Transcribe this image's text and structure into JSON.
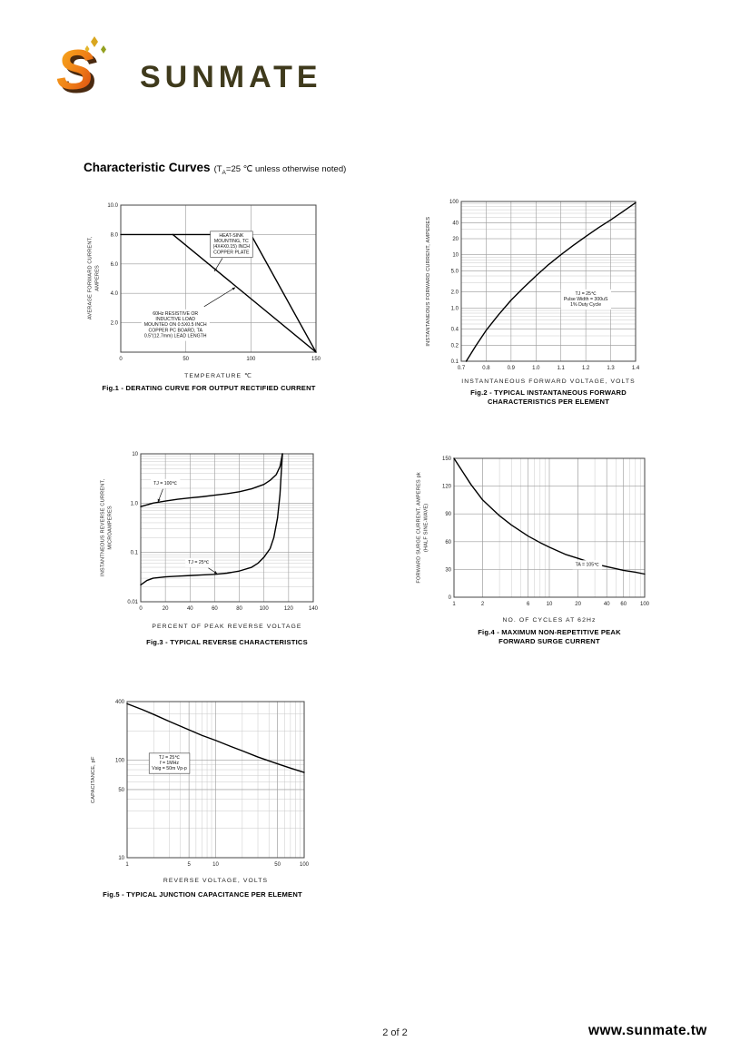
{
  "page": {
    "brand": "SUNMATE",
    "logo_monogram": "S",
    "title": "Characteristic Curves",
    "title_note_pre": "(T",
    "title_note_sub": "A",
    "title_note_post": "=25 ℃ unless otherwise noted)",
    "footer_page": "2 of 2",
    "footer_site": "www.sunmate.tw"
  },
  "colors": {
    "logo_gradient_top": "#f9b51e",
    "logo_gradient_bottom": "#d43f10",
    "wordmark": "#3f3a1c",
    "grid_minor": "#c9c9c9",
    "grid_major": "#9b9b9b",
    "curve": "#000000"
  },
  "chart_data": [
    {
      "id": "fig1",
      "type": "line",
      "x_label": "TEMPERATURE ℃",
      "y_label": "AVERAGE FORWARD CURRENT,\nAMPERES",
      "caption": "Fig.1 - DERATING CURVE FOR OUTPUT RECTIFIED CURRENT",
      "x_axis": {
        "scale": "linear",
        "min": 0,
        "max": 150,
        "ticks": [
          0,
          50,
          100,
          150
        ],
        "tick_labels": [
          "0",
          "50",
          "100",
          "150"
        ]
      },
      "y_axis": {
        "scale": "linear",
        "min": 0,
        "max": 10,
        "ticks": [
          2,
          4,
          6,
          8,
          10
        ],
        "tick_labels": [
          "2.0",
          "4.0",
          "6.0",
          "8.0",
          "10.0"
        ]
      },
      "series": [
        {
          "name": "heat-sink mounted",
          "points": [
            [
              0,
              8
            ],
            [
              100,
              8
            ],
            [
              150,
              0
            ]
          ]
        },
        {
          "name": "pc-board mounted",
          "points": [
            [
              40,
              8
            ],
            [
              150,
              0
            ]
          ]
        }
      ],
      "annotations": [
        {
          "text": "HEAT-SINK\nMOUNTING, TC\n(4X4X0.15) INCH\nCOPPER PLATE",
          "x": 85,
          "y": 7.4,
          "boxed": true,
          "arrow_to": [
            72,
            5.5
          ]
        },
        {
          "text": "60Hz RESISTIVE OR\nINDUCTIVE LOAD\nMOUNTED ON 0.5X0.5 INCH\nCOPPER PC BOARD, TA\n0.5\"(12.7mm) LEAD LENGTH",
          "x": 42,
          "y": 1.9,
          "boxed": false,
          "arrow_to": [
            88,
            4.4
          ]
        }
      ]
    },
    {
      "id": "fig2",
      "type": "line",
      "x_label": "INSTANTANEOUS FORWARD VOLTAGE, VOLTS",
      "y_label": "INSTANTANEOUS FORWARD CURRENT, AMPERES",
      "caption": "Fig.2 - TYPICAL INSTANTANEOUS FORWARD\nCHARACTERISTICS PER ELEMENT",
      "x_axis": {
        "scale": "linear",
        "min": 0.7,
        "max": 1.4,
        "ticks": [
          0.7,
          0.8,
          0.9,
          1.0,
          1.1,
          1.2,
          1.3,
          1.4
        ],
        "tick_labels": [
          "0.7",
          "0.8",
          "0.9",
          "1.0",
          "1.1",
          "1.2",
          "1.3",
          "1.4"
        ]
      },
      "y_axis": {
        "scale": "log",
        "min": 0.1,
        "max": 100,
        "ticks": [
          0.1,
          0.2,
          0.4,
          1.0,
          2.0,
          5.0,
          10,
          20,
          40,
          100
        ],
        "tick_labels": [
          "0.1",
          "0.2",
          "0.4",
          "1.0",
          "2.0",
          "5.0",
          "10",
          "20",
          "40",
          "100"
        ]
      },
      "series": [
        {
          "name": "forward characteristic",
          "points": [
            [
              0.72,
              0.1
            ],
            [
              0.76,
              0.2
            ],
            [
              0.8,
              0.38
            ],
            [
              0.85,
              0.75
            ],
            [
              0.9,
              1.4
            ],
            [
              0.95,
              2.4
            ],
            [
              1.0,
              4
            ],
            [
              1.05,
              6.5
            ],
            [
              1.1,
              10
            ],
            [
              1.15,
              15
            ],
            [
              1.2,
              22
            ],
            [
              1.25,
              32
            ],
            [
              1.3,
              45
            ],
            [
              1.35,
              65
            ],
            [
              1.4,
              95
            ]
          ]
        }
      ],
      "annotations": [
        {
          "text": "TJ = 25℃\nPulse Width = 300uS\n1% Duty Cycle",
          "x": 1.2,
          "y": 1.5,
          "boxed": false
        }
      ]
    },
    {
      "id": "fig3",
      "type": "line",
      "x_label": "PERCENT OF PEAK REVERSE VOLTAGE",
      "y_label": "INSTANTNEOUS REVERSE CURRENT,\nMICROAMPERES",
      "caption": "Fig.3 - TYPICAL REVERSE CHARACTERISTICS",
      "x_axis": {
        "scale": "linear",
        "min": 0,
        "max": 140,
        "ticks": [
          0,
          20,
          40,
          60,
          80,
          100,
          120,
          140
        ],
        "tick_labels": [
          "0",
          "20",
          "40",
          "60",
          "80",
          "100",
          "120",
          "140"
        ]
      },
      "y_axis": {
        "scale": "log",
        "min": 0.01,
        "max": 10,
        "ticks": [
          0.01,
          0.1,
          1.0,
          10
        ],
        "tick_labels": [
          "0.01",
          "0.1",
          "1.0",
          "10"
        ]
      },
      "series": [
        {
          "name": "TJ = 100C",
          "points": [
            [
              0,
              0.85
            ],
            [
              10,
              1.0
            ],
            [
              20,
              1.1
            ],
            [
              30,
              1.2
            ],
            [
              40,
              1.28
            ],
            [
              50,
              1.35
            ],
            [
              60,
              1.45
            ],
            [
              70,
              1.55
            ],
            [
              80,
              1.7
            ],
            [
              90,
              1.95
            ],
            [
              100,
              2.4
            ],
            [
              105,
              2.9
            ],
            [
              110,
              3.8
            ],
            [
              113,
              5.5
            ],
            [
              115,
              10
            ]
          ]
        },
        {
          "name": "TJ = 25C",
          "points": [
            [
              0,
              0.022
            ],
            [
              5,
              0.027
            ],
            [
              10,
              0.03
            ],
            [
              20,
              0.032
            ],
            [
              30,
              0.033
            ],
            [
              40,
              0.034
            ],
            [
              50,
              0.035
            ],
            [
              60,
              0.036
            ],
            [
              70,
              0.038
            ],
            [
              80,
              0.042
            ],
            [
              90,
              0.05
            ],
            [
              95,
              0.06
            ],
            [
              100,
              0.08
            ],
            [
              105,
              0.12
            ],
            [
              108,
              0.2
            ],
            [
              111,
              0.5
            ],
            [
              113,
              1.5
            ],
            [
              114,
              4
            ],
            [
              115,
              10
            ]
          ]
        }
      ],
      "annotations": [
        {
          "text": "TJ = 100℃",
          "x": 20,
          "y": 2.6,
          "boxed": false,
          "arrow_to": [
            14,
            1.05
          ]
        },
        {
          "text": "TJ = 25℃",
          "x": 47,
          "y": 0.065,
          "boxed": false,
          "arrow_to": [
            62,
            0.037
          ]
        }
      ]
    },
    {
      "id": "fig4",
      "type": "line",
      "x_label": "NO. OF CYCLES AT 62Hz",
      "y_label": "FORWARD SURGE CURRENT, AMPERES pk\n(HALF SINE-WAVE)",
      "caption": "Fig.4 - MAXIMUM NON-REPETITIVE PEAK\nFORWARD SURGE CURRENT",
      "x_axis": {
        "scale": "log",
        "min": 1,
        "max": 100,
        "ticks": [
          1,
          2,
          6,
          10,
          20,
          40,
          60,
          100
        ],
        "tick_labels": [
          "1",
          "2",
          "6",
          "10",
          "20",
          "40",
          "60",
          "100"
        ]
      },
      "y_axis": {
        "scale": "linear",
        "min": 0,
        "max": 150,
        "ticks": [
          0,
          30,
          60,
          90,
          120,
          150
        ],
        "tick_labels": [
          "0",
          "30",
          "60",
          "90",
          "120",
          "150"
        ]
      },
      "series": [
        {
          "name": "surge current",
          "points": [
            [
              1,
              150
            ],
            [
              1.5,
              122
            ],
            [
              2,
              105
            ],
            [
              3,
              88
            ],
            [
              4,
              78
            ],
            [
              6,
              66
            ],
            [
              8,
              59
            ],
            [
              10,
              54
            ],
            [
              15,
              46
            ],
            [
              20,
              42
            ],
            [
              30,
              36
            ],
            [
              40,
              33
            ],
            [
              60,
              29
            ],
            [
              80,
              27
            ],
            [
              100,
              25
            ]
          ]
        }
      ],
      "annotations": [
        {
          "text": "TA = 105℃",
          "x": 25,
          "y": 36,
          "boxed": false
        }
      ]
    },
    {
      "id": "fig5",
      "type": "line",
      "x_label": "REVERSE VOLTAGE, VOLTS",
      "y_label": "CAPACITANCE, pF",
      "caption": "Fig.5 - TYPICAL JUNCTION CAPACITANCE PER ELEMENT",
      "x_axis": {
        "scale": "log",
        "min": 1,
        "max": 100,
        "ticks": [
          1,
          5,
          10,
          50,
          100
        ],
        "tick_labels": [
          "1",
          "5",
          "10",
          "50",
          "100"
        ]
      },
      "y_axis": {
        "scale": "log",
        "min": 10,
        "max": 400,
        "ticks": [
          10,
          50,
          100,
          400
        ],
        "tick_labels": [
          "10",
          "50",
          "100",
          "400"
        ]
      },
      "series": [
        {
          "name": "junction capacitance",
          "points": [
            [
              1,
              380
            ],
            [
              1.5,
              330
            ],
            [
              2,
              295
            ],
            [
              3,
              250
            ],
            [
              5,
              205
            ],
            [
              7,
              180
            ],
            [
              10,
              160
            ],
            [
              15,
              138
            ],
            [
              20,
              125
            ],
            [
              30,
              108
            ],
            [
              50,
              92
            ],
            [
              70,
              83
            ],
            [
              100,
              75
            ]
          ]
        }
      ],
      "annotations": [
        {
          "text": "TJ = 25℃\nf = 1MHz\nVsig = 50m Vp-p",
          "x": 3,
          "y": 95,
          "boxed": true
        }
      ]
    }
  ]
}
